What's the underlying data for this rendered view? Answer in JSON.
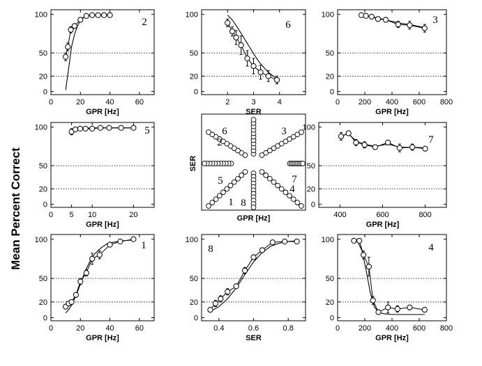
{
  "figure": {
    "ylabel": "Mean Percent Correct"
  },
  "chart_data": [
    {
      "id": "p2",
      "type": "line",
      "panel_label": "2",
      "xlabel": "GPR [Hz]",
      "xlim": [
        0,
        70
      ],
      "xticks": [
        0,
        20,
        40,
        60
      ],
      "ylim": [
        -4,
        106
      ],
      "yticks": [
        0,
        20,
        50,
        100
      ],
      "gridlines": [
        20,
        50
      ],
      "data": {
        "x": [
          10,
          11.5,
          13.5,
          16,
          20,
          24,
          28,
          32,
          36,
          40
        ],
        "y": [
          45,
          58,
          80,
          85,
          93,
          98,
          99,
          99,
          99,
          99
        ],
        "err": [
          5,
          5,
          4,
          3,
          2,
          1,
          1,
          0.5,
          0.5,
          0.5
        ]
      },
      "fit": {
        "x": [
          10,
          12,
          14,
          16,
          18,
          20,
          22,
          24,
          26,
          30,
          35,
          40
        ],
        "y": [
          2,
          30,
          58,
          74,
          85,
          92,
          96,
          98,
          99,
          99.5,
          99.7,
          99.8
        ]
      }
    },
    {
      "id": "p6",
      "type": "line",
      "panel_label": "6",
      "xlabel": "SER",
      "xlim": [
        1,
        5
      ],
      "xticks": [
        2,
        3,
        4
      ],
      "ylim": [
        -4,
        106
      ],
      "yticks": [
        0,
        20,
        50,
        100
      ],
      "gridlines": [
        20,
        50
      ],
      "data": {
        "x": [
          2,
          2.18,
          2.33,
          2.52,
          2.76,
          3,
          3.27,
          3.57,
          3.9
        ],
        "y": [
          89,
          78,
          70,
          60,
          43,
          33,
          25,
          20,
          15
        ],
        "err": [
          5,
          6,
          9,
          12,
          10,
          10,
          9,
          7,
          5
        ]
      },
      "fit": {
        "x": [
          2,
          2.2,
          2.4,
          2.6,
          2.8,
          3,
          3.2,
          3.4,
          3.6,
          3.8,
          4
        ],
        "y": [
          99,
          92,
          82,
          71,
          60,
          49,
          39,
          31,
          24,
          19,
          15
        ]
      }
    },
    {
      "id": "p3",
      "type": "line",
      "panel_label": "3",
      "xlabel": "GPR [Hz]",
      "xlim": [
        0,
        800
      ],
      "xticks": [
        0,
        200,
        400,
        600,
        800
      ],
      "ylim": [
        -4,
        106
      ],
      "yticks": [
        0,
        20,
        50,
        100
      ],
      "gridlines": [
        20,
        50
      ],
      "data": {
        "x": [
          175,
          208,
          250,
          297,
          354,
          445,
          530,
          640
        ],
        "y": [
          99,
          98,
          97,
          94,
          93,
          87,
          86,
          82
        ],
        "err": [
          1,
          1,
          2,
          3,
          3,
          4,
          5,
          5
        ]
      },
      "fit": {
        "x": [
          175,
          250,
          350,
          450,
          550,
          640
        ],
        "y": [
          99,
          97,
          93,
          89,
          86,
          83
        ]
      }
    },
    {
      "id": "p5",
      "type": "line",
      "panel_label": "5",
      "xlabel": "GPR [Hz]",
      "xlim": [
        0,
        25
      ],
      "xticks": [
        0,
        5,
        10,
        20
      ],
      "ylim": [
        -4,
        106
      ],
      "yticks": [
        0,
        20,
        50,
        100
      ],
      "gridlines": [
        20,
        50
      ],
      "data": {
        "x": [
          5,
          5.9,
          7.1,
          8.4,
          10,
          12,
          14.1,
          17,
          20
        ],
        "y": [
          94,
          97,
          98,
          98,
          98,
          99,
          99,
          99,
          99
        ],
        "err": [
          4,
          2,
          1,
          1,
          1,
          0.5,
          0.5,
          0.5,
          0.5
        ]
      },
      "fit": {
        "x": [
          5,
          6,
          8,
          10,
          14,
          20
        ],
        "y": [
          96,
          98,
          98.5,
          99,
          99,
          99
        ]
      }
    },
    {
      "id": "center",
      "type": "scatter",
      "ylabel": "SER",
      "xlabel": "GPR [Hz]",
      "rays": [
        {
          "label": "6",
          "dir": "up"
        },
        {
          "label": "3",
          "dir": "up-right"
        },
        {
          "label": "7",
          "dir": "right"
        },
        {
          "label": "4",
          "dir": "down-right"
        },
        {
          "label": "8",
          "dir": "down"
        },
        {
          "label": "1",
          "dir": "down-left"
        },
        {
          "label": "5",
          "dir": "left"
        },
        {
          "label": "2",
          "dir": "up-left"
        }
      ]
    },
    {
      "id": "p7",
      "type": "line",
      "panel_label": "7",
      "xlabel": "GPR [Hz]",
      "xlim": [
        300,
        900
      ],
      "xticks": [
        400,
        600,
        800
      ],
      "ylim": [
        -4,
        106
      ],
      "yticks": [
        0,
        20,
        50,
        100
      ],
      "gridlines": [
        20,
        50
      ],
      "data": {
        "x": [
          405,
          440,
          475,
          515,
          565,
          625,
          680,
          740,
          800
        ],
        "y": [
          88,
          92,
          80,
          77,
          74,
          80,
          73,
          74,
          72
        ],
        "err": [
          5,
          3,
          4,
          4,
          3,
          3,
          5,
          4,
          3
        ]
      },
      "fit": {
        "x": [
          405,
          440,
          475,
          515,
          565,
          625,
          680,
          740,
          800
        ],
        "y": [
          89,
          91,
          82,
          78,
          75,
          78,
          74,
          74,
          73
        ]
      }
    },
    {
      "id": "p1",
      "type": "line",
      "panel_label": "1",
      "xlabel": "GPR [Hz]",
      "xlim": [
        0,
        70
      ],
      "xticks": [
        0,
        20,
        40,
        60
      ],
      "ylim": [
        -4,
        106
      ],
      "yticks": [
        0,
        20,
        50,
        100
      ],
      "gridlines": [
        20,
        50
      ],
      "data": {
        "x": [
          10,
          12,
          14,
          17,
          20,
          24,
          28,
          33,
          40,
          47,
          56
        ],
        "y": [
          14,
          18,
          20,
          29,
          46,
          57,
          75,
          80,
          93,
          97,
          100
        ],
        "err": [
          2,
          2,
          3,
          3,
          4,
          4,
          7,
          5,
          3,
          2,
          1
        ]
      },
      "fit": {
        "x": [
          10,
          12,
          14,
          16,
          18,
          20,
          22,
          24,
          26,
          28,
          30,
          34,
          38,
          42,
          48,
          56
        ],
        "y": [
          6,
          10,
          16,
          24,
          33,
          43,
          53,
          62,
          70,
          77,
          82,
          89,
          94,
          96,
          98,
          99
        ]
      }
    },
    {
      "id": "p8",
      "type": "line",
      "panel_label": "8",
      "xlabel": "SER",
      "xlim": [
        0.3,
        0.9
      ],
      "xticks": [
        0.4,
        0.6,
        0.8
      ],
      "ylim": [
        -4,
        106
      ],
      "yticks": [
        0,
        20,
        50,
        100
      ],
      "gridlines": [
        20,
        50
      ],
      "data": {
        "x": [
          0.35,
          0.38,
          0.41,
          0.45,
          0.5,
          0.55,
          0.6,
          0.65,
          0.71,
          0.78,
          0.85
        ],
        "y": [
          10,
          18,
          24,
          33,
          40,
          60,
          77,
          86,
          96,
          97,
          97
        ],
        "err": [
          3,
          4,
          4,
          4,
          3,
          4,
          3,
          3,
          2,
          2,
          2
        ]
      },
      "fit": {
        "x": [
          0.35,
          0.4,
          0.45,
          0.5,
          0.55,
          0.6,
          0.65,
          0.7,
          0.75,
          0.8,
          0.85
        ],
        "y": [
          8,
          14,
          24,
          38,
          55,
          71,
          83,
          91,
          95,
          97,
          98
        ]
      }
    },
    {
      "id": "p4",
      "type": "line",
      "panel_label": "4",
      "xlabel": "GPR [Hz]",
      "xlim": [
        0,
        800
      ],
      "xticks": [
        0,
        200,
        400,
        600,
        800
      ],
      "ylim": [
        -4,
        106
      ],
      "yticks": [
        0,
        20,
        50,
        100
      ],
      "gridlines": [
        20,
        50
      ],
      "data": {
        "x": [
          120,
          160,
          190,
          230,
          260,
          300,
          370,
          440,
          530,
          640
        ],
        "y": [
          98,
          98,
          80,
          65,
          22,
          7,
          13,
          11,
          13,
          10
        ],
        "err": [
          1,
          1,
          5,
          12,
          5,
          3,
          7,
          4,
          3,
          3
        ]
      },
      "fit": {
        "x": [
          120,
          150,
          180,
          210,
          240,
          270,
          300,
          340,
          400,
          500,
          640
        ],
        "y": [
          98,
          96,
          85,
          60,
          32,
          14,
          7,
          5,
          4,
          4,
          4
        ]
      }
    }
  ]
}
